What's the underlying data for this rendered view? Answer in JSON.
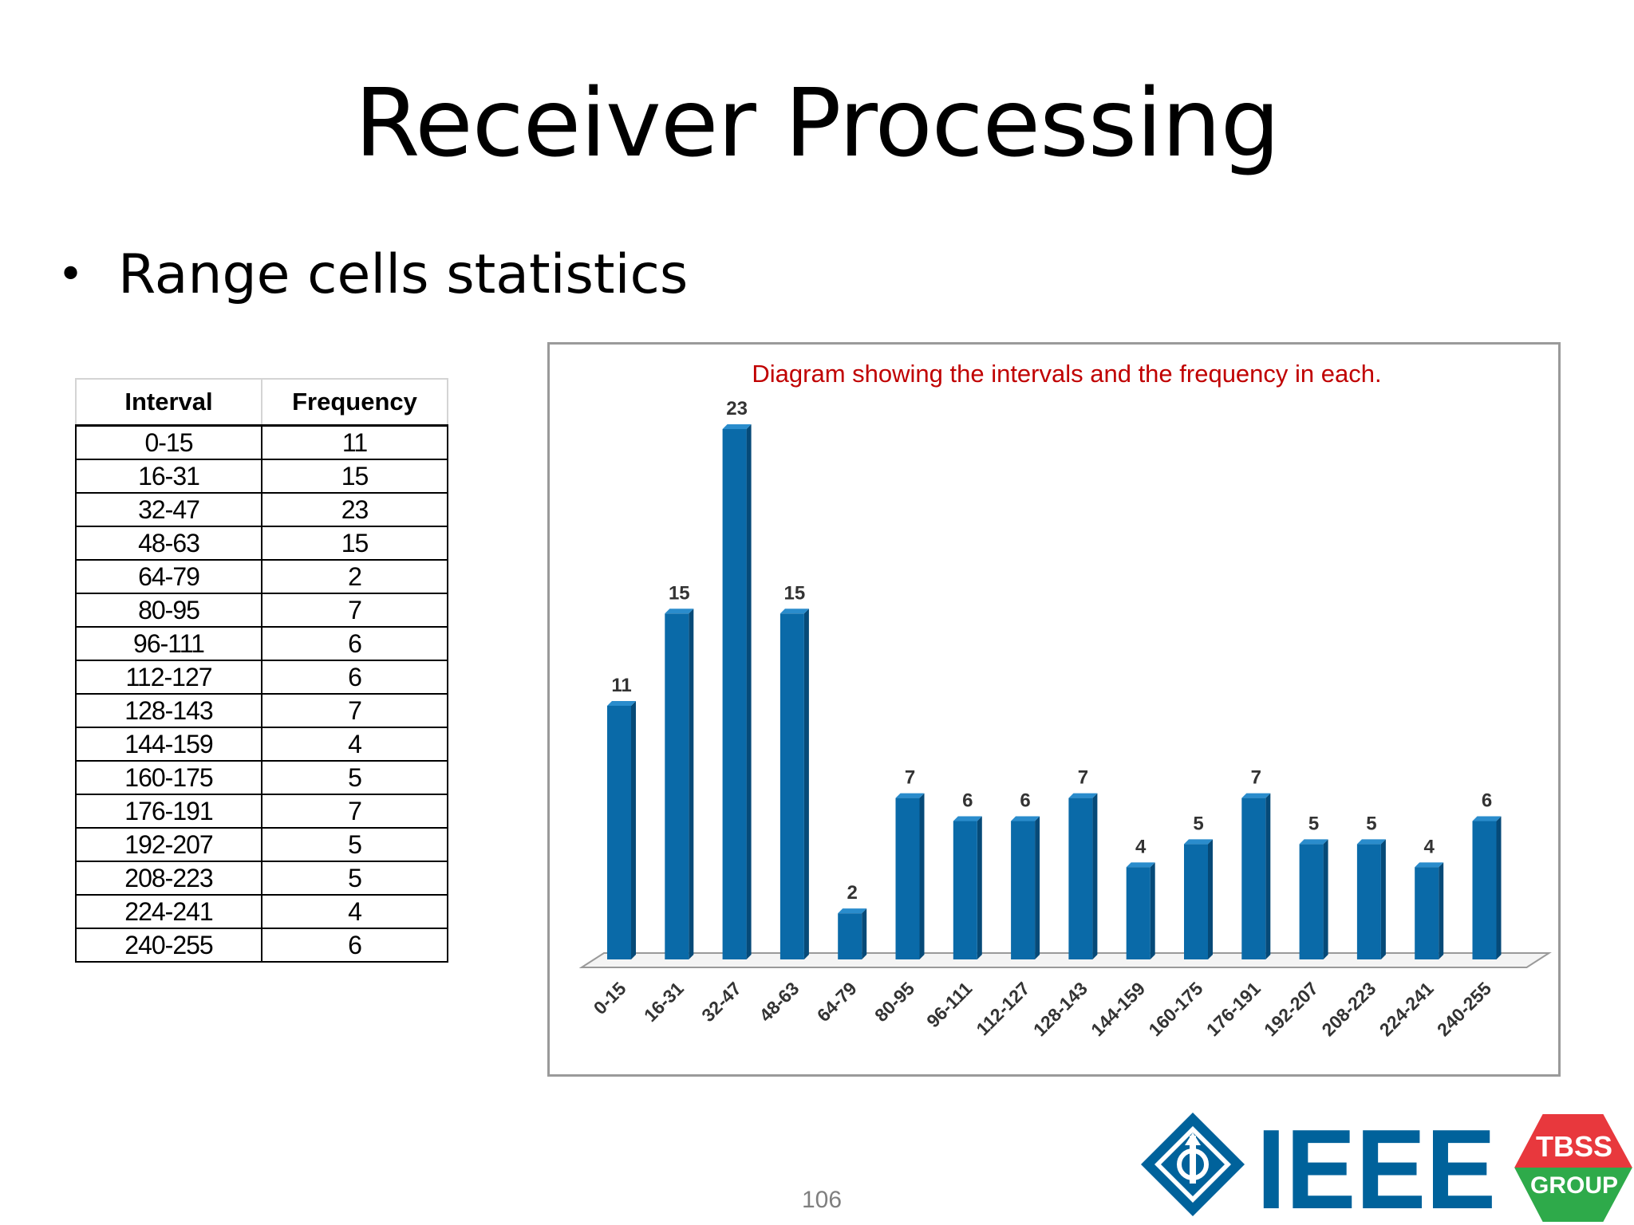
{
  "slide": {
    "title": "Receiver Processing",
    "bullet": "Range cells statistics",
    "page_number": "106"
  },
  "table": {
    "headers": [
      "Interval",
      "Frequency"
    ],
    "rows": [
      [
        "0-15",
        "11"
      ],
      [
        "16-31",
        "15"
      ],
      [
        "32-47",
        "23"
      ],
      [
        "48-63",
        "15"
      ],
      [
        "64-79",
        "2"
      ],
      [
        "80-95",
        "7"
      ],
      [
        "96-111",
        "6"
      ],
      [
        "112-127",
        "6"
      ],
      [
        "128-143",
        "7"
      ],
      [
        "144-159",
        "4"
      ],
      [
        "160-175",
        "5"
      ],
      [
        "176-191",
        "7"
      ],
      [
        "192-207",
        "5"
      ],
      [
        "208-223",
        "5"
      ],
      [
        "224-241",
        "4"
      ],
      [
        "240-255",
        "6"
      ]
    ]
  },
  "chart_data": {
    "type": "bar",
    "title": "Diagram showing the intervals and the frequency in each.",
    "categories": [
      "0-15",
      "16-31",
      "32-47",
      "48-63",
      "64-79",
      "80-95",
      "96-111",
      "112-127",
      "128-143",
      "144-159",
      "160-175",
      "176-191",
      "192-207",
      "208-223",
      "224-241",
      "240-255"
    ],
    "values": [
      11,
      15,
      23,
      15,
      2,
      7,
      6,
      6,
      7,
      4,
      5,
      7,
      5,
      5,
      4,
      6
    ],
    "xlabel": "",
    "ylabel": "",
    "ylim": [
      0,
      23
    ],
    "grid": false,
    "legend": "none",
    "data_labels": true
  },
  "logos": {
    "ieee_text": "IEEE",
    "tbss_line1": "TBSS",
    "tbss_line2": "GROUP"
  },
  "colors": {
    "bar": "#0a6aa8",
    "bar_dark": "#064a78",
    "bar_light": "#2a8ccc",
    "title_red": "#c00000",
    "ieee_blue": "#00629b",
    "tbss_red": "#e8383d",
    "tbss_green": "#2eaa4a"
  }
}
